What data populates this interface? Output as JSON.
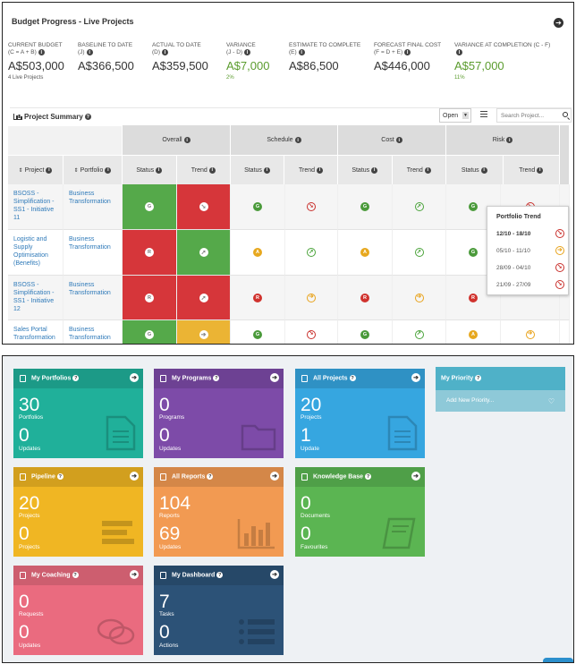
{
  "budget": {
    "title": "Budget Progress - Live Projects",
    "metrics": [
      {
        "label1": "CURRENT BUDGET",
        "label2": "(C = A + B)",
        "value": "A$503,000",
        "sub": "4 Live Projects"
      },
      {
        "label1": "BASELINE TO DATE",
        "label2": "(J)",
        "value": "A$366,500",
        "sub": ""
      },
      {
        "label1": "ACTUAL TO DATE",
        "label2": "(D)",
        "value": "A$359,500",
        "sub": ""
      },
      {
        "label1": "VARIANCE",
        "label2": "(J - D)",
        "value": "A$7,000",
        "sub": "2%"
      },
      {
        "label1": "ESTIMATE TO COMPLETE",
        "label2": "(E)",
        "value": "A$86,500",
        "sub": ""
      },
      {
        "label1": "FORECAST FINAL COST",
        "label2": "(F = D + E)",
        "value": "A$446,000",
        "sub": ""
      },
      {
        "label1": "VARIANCE AT COMPLETION (C - F)",
        "label2": "",
        "value": "A$57,000",
        "sub": "11%"
      }
    ],
    "colors": {
      "positive": "#5b9c2e"
    }
  },
  "summary": {
    "title": "Project Summary",
    "filter_value": "Open",
    "search_placeholder": "Search Project...",
    "groups": [
      "Overall",
      "Schedule",
      "Cost",
      "Risk"
    ],
    "col_project": "Project",
    "col_portfolio": "Portfolio",
    "sub_status": "Status",
    "sub_trend": "Trend",
    "rows": [
      {
        "project": "BSOSS - Simplification - SS1 - Initiative 11",
        "portfolio": "Business Transformation",
        "overall_status": "G",
        "overall_trend": "down",
        "overall_status_bg": "#55a94a",
        "overall_trend_bg": "#d6363a",
        "schedule_status": "G",
        "schedule_trend": "down-r",
        "cost_status": "G",
        "cost_trend": "up-g",
        "risk_status": "G",
        "risk_trend": "down-r"
      },
      {
        "project": "Logistic and Supply Optimisation (Benefits)",
        "portfolio": "Business Transformation",
        "overall_status": "R",
        "overall_trend": "up",
        "overall_status_bg": "#d6363a",
        "overall_trend_bg": "#55a94a",
        "schedule_status": "A",
        "schedule_trend": "up-g",
        "cost_status": "A",
        "cost_trend": "up-g",
        "risk_status": "G",
        "risk_trend": ""
      },
      {
        "project": "BSOSS - Simplification - SS1 - Initiative 12",
        "portfolio": "Business Transformation",
        "overall_status": "R",
        "overall_trend": "up",
        "overall_status_bg": "#d6363a",
        "overall_trend_bg": "#d6363a",
        "schedule_status": "R",
        "schedule_trend": "right-a",
        "cost_status": "R",
        "cost_trend": "right-a",
        "risk_status": "R",
        "risk_trend": ""
      },
      {
        "project": "Sales Portal Transformation",
        "portfolio": "Business Transformation",
        "overall_status": "G",
        "overall_trend": "right",
        "overall_status_bg": "#55a94a",
        "overall_trend_bg": "#ebb434",
        "schedule_status": "G",
        "schedule_trend": "down-r",
        "cost_status": "G",
        "cost_trend": "up-g",
        "risk_status": "A",
        "risk_trend": "right-a"
      }
    ],
    "popup": {
      "title": "Portfolio Trend",
      "items": [
        {
          "range": "12/10 - 18/10",
          "trend": "down-r",
          "bold": true
        },
        {
          "range": "05/10 - 11/10",
          "trend": "right-a",
          "bold": false
        },
        {
          "range": "28/09 - 04/10",
          "trend": "down-r",
          "bold": false
        },
        {
          "range": "21/09 - 27/09",
          "trend": "down-r",
          "bold": false
        }
      ]
    }
  },
  "tiles": [
    {
      "title": "My Portfolios",
      "color": "#20b09a",
      "n1": "30",
      "l1": "Portfolios",
      "n2": "0",
      "l2": "Updates",
      "icon": "document-icon"
    },
    {
      "title": "My Programs",
      "color": "#7d4ba8",
      "n1": "0",
      "l1": "Programs",
      "n2": "0",
      "l2": "Updates",
      "icon": "folder-icon"
    },
    {
      "title": "All Projects",
      "color": "#36a6e0",
      "n1": "20",
      "l1": "Projects",
      "n2": "1",
      "l2": "Update",
      "icon": "file-icon"
    },
    {
      "title": "Pipeline",
      "color": "#f0b623",
      "n1": "20",
      "l1": "Projects",
      "n2": "0",
      "l2": "Projects",
      "icon": "pipeline-icon"
    },
    {
      "title": "All Reports",
      "color": "#f29a52",
      "n1": "104",
      "l1": "Reports",
      "n2": "69",
      "l2": "Updates",
      "icon": "bar-chart-icon"
    },
    {
      "title": "Knowledge Base",
      "color": "#5bb552",
      "n1": "0",
      "l1": "Documents",
      "n2": "0",
      "l2": "Favourites",
      "icon": "book-icon"
    },
    {
      "title": "My Coaching",
      "color": "#ea6b7f",
      "n1": "0",
      "l1": "Requests",
      "n2": "0",
      "l2": "Updates",
      "icon": "chat-icon"
    },
    {
      "title": "My Dashboard",
      "color": "#2c5277",
      "n1": "7",
      "l1": "Tasks",
      "n2": "0",
      "l2": "Actions",
      "icon": "list-icon"
    }
  ],
  "priority": {
    "title": "My Priority",
    "add_label": "Add New Priority..."
  }
}
